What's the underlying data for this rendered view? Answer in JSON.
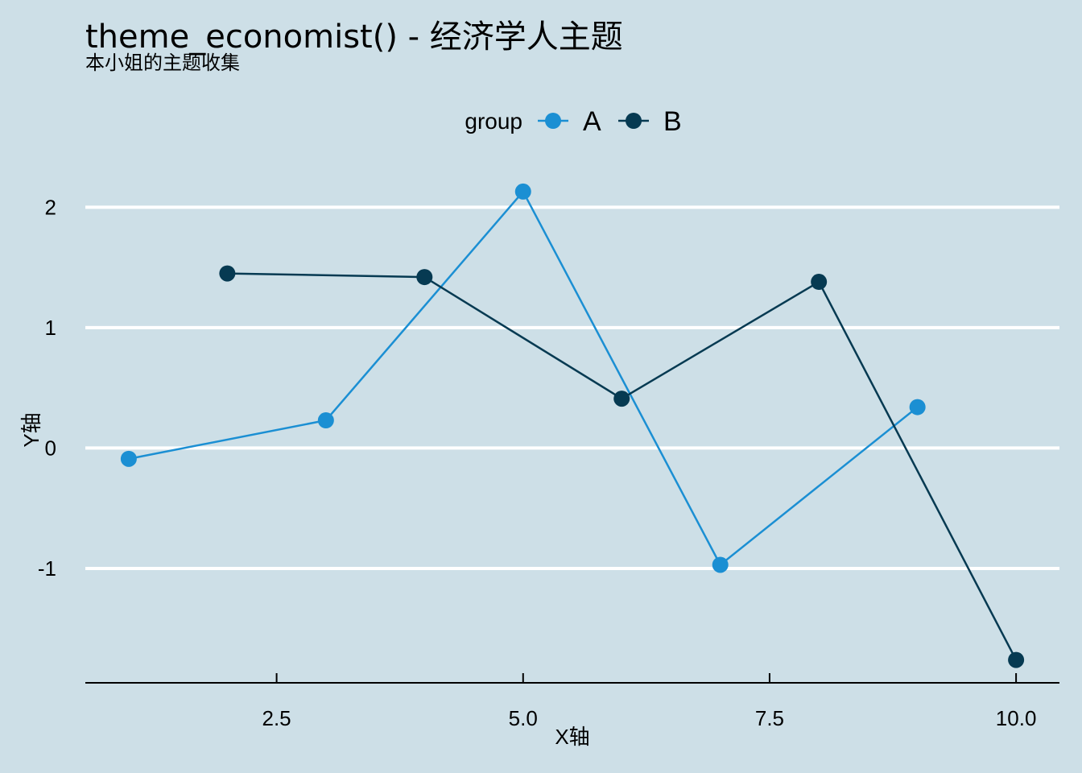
{
  "chart_data": {
    "type": "line",
    "title": "theme_economist() - 经济学人主题",
    "subtitle": "本小姐的主题收集",
    "xlabel": "X轴",
    "ylabel": "Y轴",
    "xlim": [
      0.56,
      10.44
    ],
    "ylim": [
      -1.95,
      2.35
    ],
    "x_ticks": [
      2.5,
      5.0,
      7.5,
      10.0
    ],
    "x_tick_labels": [
      "2.5",
      "5.0",
      "7.5",
      "10.0"
    ],
    "y_ticks": [
      -1,
      0,
      1,
      2
    ],
    "y_tick_labels": [
      "-1",
      "0",
      "1",
      "2"
    ],
    "grid": "horizontal",
    "legend": {
      "title": "group",
      "position": "top"
    },
    "series": [
      {
        "name": "A",
        "color": "#1b8fd3",
        "x": [
          1,
          3,
          5,
          7,
          9
        ],
        "y": [
          -0.09,
          0.23,
          2.13,
          -0.97,
          0.34
        ]
      },
      {
        "name": "B",
        "color": "#063a52",
        "x": [
          2,
          4,
          6,
          8,
          10
        ],
        "y": [
          1.45,
          1.42,
          0.41,
          1.38,
          -1.76
        ]
      }
    ]
  },
  "colors": {
    "background": "#cddfe7",
    "grid": "#ffffff",
    "axis": "#000000"
  }
}
